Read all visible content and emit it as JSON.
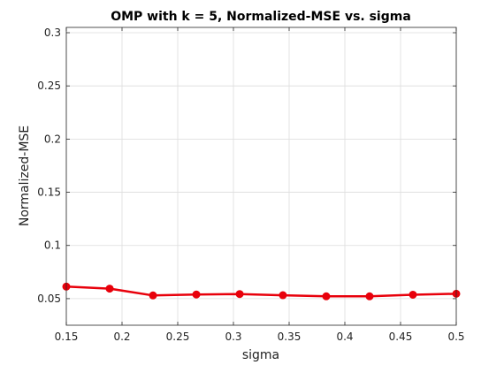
{
  "chart_data": {
    "type": "line",
    "title": "OMP with k = 5, Normalized-MSE vs. sigma",
    "xlabel": "sigma",
    "ylabel": "Normalized-MSE",
    "xlim": [
      0.15,
      0.5
    ],
    "ylim": [
      0.025,
      0.305
    ],
    "xticks": [
      0.15,
      0.2,
      0.25,
      0.3,
      0.35,
      0.4,
      0.45,
      0.5
    ],
    "xtick_labels": [
      "0.15",
      "0.2",
      "0.25",
      "0.3",
      "0.35",
      "0.4",
      "0.45",
      "0.5"
    ],
    "yticks": [
      0.05,
      0.1,
      0.15,
      0.2,
      0.25,
      0.3
    ],
    "ytick_labels": [
      "0.05",
      "0.1",
      "0.15",
      "0.2",
      "0.25",
      "0.3"
    ],
    "grid": true,
    "series": [
      {
        "color": "#e8000b",
        "marker": "circle",
        "x": [
          0.15,
          0.1889,
          0.2278,
          0.2667,
          0.3056,
          0.3444,
          0.3833,
          0.4222,
          0.4611,
          0.5
        ],
        "y": [
          0.0613,
          0.0594,
          0.053,
          0.0539,
          0.0543,
          0.0532,
          0.0522,
          0.0522,
          0.0537,
          0.0546
        ]
      }
    ]
  }
}
